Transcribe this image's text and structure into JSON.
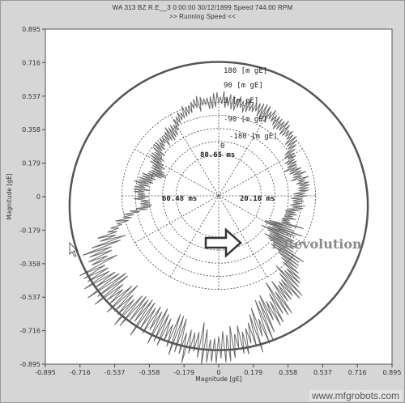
{
  "header": {
    "line1": "WA 313 BZ R.E__3      0:00:00 30/12/1899    Speed 744.00 RPM",
    "line2": ">>  Running Speed  <<"
  },
  "chart_data": {
    "type": "polar-orbit",
    "xlabel": "Magnitude [gE]",
    "ylabel": "Magnitude [gE]",
    "xlim": [
      -0.895,
      0.895
    ],
    "ylim": [
      -0.895,
      0.895
    ],
    "xticks": [
      "-0.895",
      "-0.716",
      "-0.537",
      "-0.358",
      "-0.179",
      "0",
      "0.179",
      "0.358",
      "0.537",
      "0.716",
      "0.895"
    ],
    "yticks": [
      "0.895",
      "0.716",
      "0.537",
      "0.358",
      "0.179",
      "0",
      "-0.179",
      "-0.358",
      "-0.537",
      "-0.716",
      "-0.895"
    ],
    "grid": true,
    "ring_labels": [
      "180 [m gE]",
      "90 [m gE]",
      "0 [m gE]",
      "-90 [m gE]",
      "-180 [m gE]",
      "0"
    ],
    "time_labels": {
      "top": "80.65 ms",
      "left": "60.48 ms",
      "right": "20.16 ms"
    },
    "annotation": "1 Revolution",
    "reference_circle": {
      "center": [
        0,
        -0.05
      ],
      "radius": 0.77
    },
    "orbit": {
      "angles_deg": [
        0,
        15,
        30,
        45,
        60,
        75,
        90,
        105,
        120,
        135,
        150,
        165,
        180,
        195,
        210,
        225,
        240,
        255,
        270,
        285,
        300,
        315,
        330,
        345
      ],
      "radius": [
        0.4,
        0.45,
        0.43,
        0.52,
        0.55,
        0.56,
        0.57,
        0.55,
        0.47,
        0.44,
        0.36,
        0.42,
        0.38,
        0.58,
        0.72,
        0.72,
        0.7,
        0.74,
        0.76,
        0.7,
        0.6,
        0.55,
        0.36,
        0.35
      ]
    }
  },
  "cursor": {
    "icon": "arrow-cursor-icon"
  },
  "watermark": "www.mfgrobots.com"
}
